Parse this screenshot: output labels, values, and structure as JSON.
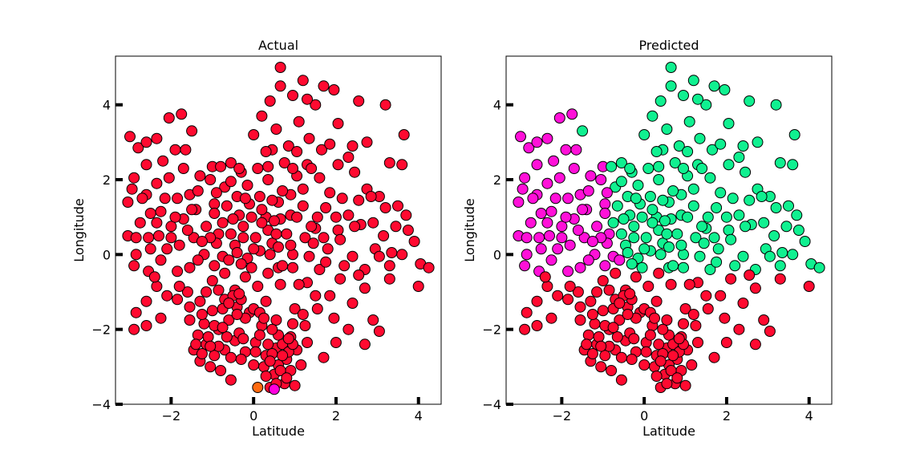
{
  "chart_data": [
    {
      "type": "scatter",
      "title": "Actual",
      "xlabel": "Latitude",
      "ylabel": "Longitude",
      "xlim": [
        -3.35,
        4.55
      ],
      "ylim": [
        -4.0,
        5.3
      ],
      "xticks": [
        -2,
        0,
        2,
        4
      ],
      "yticks": [
        -4,
        -2,
        0,
        2,
        4
      ],
      "grid": false,
      "colors": {
        "cluster_a": "#ff0a30",
        "cluster_b": "#ff00dd",
        "cluster_c": "#ff6a10"
      },
      "points": []
    },
    {
      "type": "scatter",
      "title": "Predicted",
      "xlabel": "Latitude",
      "ylabel": "Longitude",
      "xlim": [
        -3.35,
        4.55
      ],
      "ylim": [
        -4.0,
        5.3
      ],
      "xticks": [
        -2,
        0,
        2,
        4
      ],
      "yticks": [
        -4,
        -2,
        0,
        2,
        4
      ],
      "grid": false,
      "colors": {
        "cluster_a": "#ff0a30",
        "cluster_b": "#ff10d8",
        "cluster_c": "#10f090"
      },
      "points": []
    }
  ]
}
